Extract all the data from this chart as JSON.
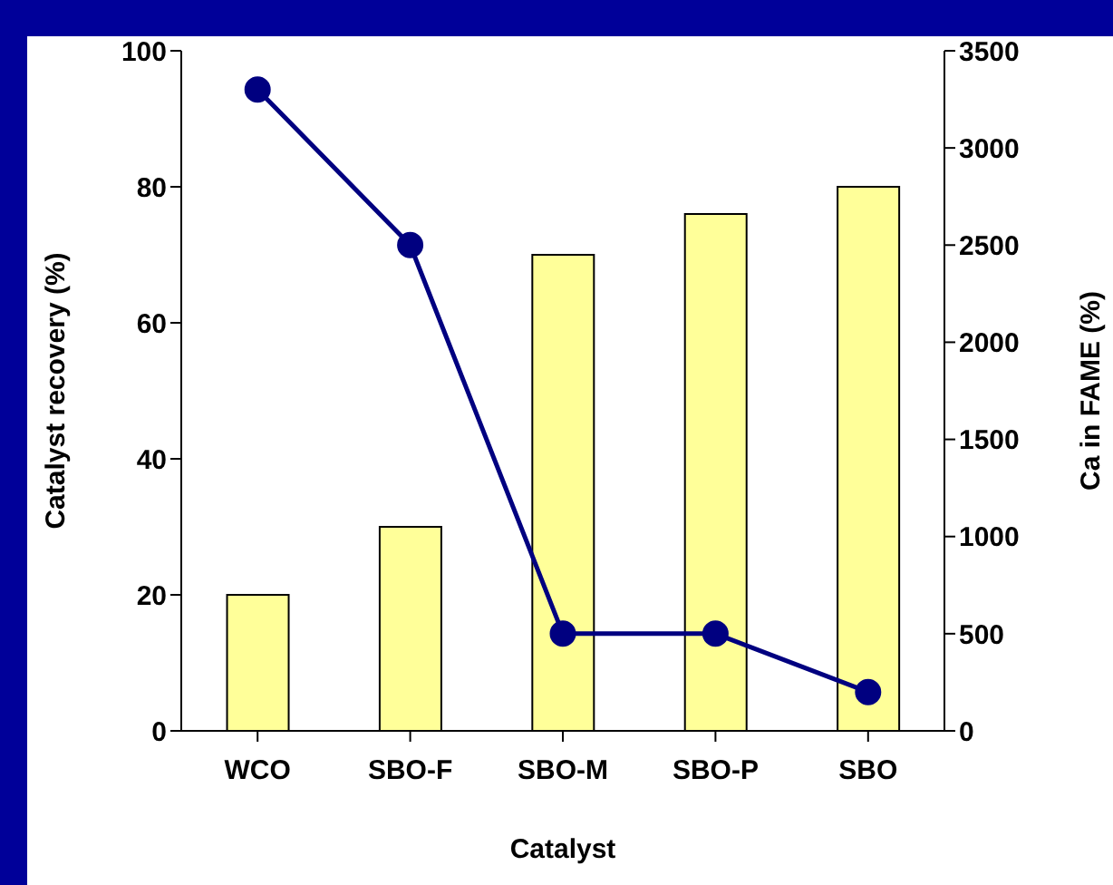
{
  "chart_data": {
    "type": "bar",
    "xlabel": "Catalyst",
    "ylabel": "Catalyst recovery (%)",
    "y2label": "Ca in FAME (%)",
    "categories": [
      "WCO",
      "SBO-F",
      "SBO-M",
      "SBO-P",
      "SBO"
    ],
    "series": [
      {
        "color": "#ffff99",
        "values": [
          20,
          30,
          70,
          76,
          80
        ]
      },
      {
        "type": "line",
        "axis": "y2",
        "color": "#000080",
        "marker": "circle",
        "values": [
          3300,
          2500,
          500,
          500,
          200
        ]
      }
    ],
    "ylim": [
      0,
      100
    ],
    "yticks": [
      0,
      20,
      40,
      60,
      80,
      100
    ],
    "y2lim": [
      0,
      3500
    ],
    "y2ticks": [
      0,
      500,
      1000,
      1500,
      2000,
      2500,
      3000,
      3500
    ],
    "grid": false,
    "legend": false
  }
}
